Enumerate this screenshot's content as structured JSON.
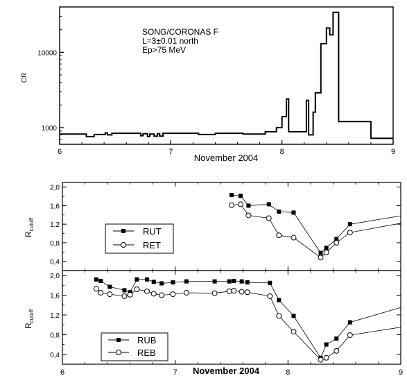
{
  "chart_data": [
    {
      "type": "line",
      "step": true,
      "scale_y": "log",
      "annotation": [
        "SONG/CORONAS F",
        "L=3±0.01 north",
        "Ep>75 MeV"
      ],
      "xlabel": "November 2004",
      "ylabel": "CR",
      "xlim": [
        6,
        9
      ],
      "ylim": [
        600,
        40000
      ],
      "x_ticks": [
        "6",
        "7",
        "8",
        "9"
      ],
      "y_ticks": [
        {
          "value": 1000,
          "label": "1000"
        },
        {
          "value": 10000,
          "label": "10000"
        }
      ],
      "series": [
        {
          "color": "#000000",
          "points": [
            [
              6.0,
              820
            ],
            [
              6.24,
              820
            ],
            [
              6.24,
              760
            ],
            [
              6.31,
              760
            ],
            [
              6.31,
              810
            ],
            [
              6.41,
              810
            ],
            [
              6.41,
              850
            ],
            [
              6.43,
              850
            ],
            [
              6.43,
              800
            ],
            [
              6.47,
              800
            ],
            [
              6.47,
              840
            ],
            [
              6.73,
              840
            ],
            [
              6.73,
              780
            ],
            [
              6.75,
              780
            ],
            [
              6.75,
              830
            ],
            [
              6.79,
              830
            ],
            [
              6.79,
              760
            ],
            [
              6.81,
              760
            ],
            [
              6.81,
              820
            ],
            [
              6.85,
              820
            ],
            [
              6.85,
              770
            ],
            [
              6.88,
              770
            ],
            [
              6.88,
              830
            ],
            [
              6.9,
              830
            ],
            [
              6.9,
              770
            ],
            [
              6.93,
              770
            ],
            [
              6.93,
              840
            ],
            [
              7.25,
              840
            ],
            [
              7.25,
              810
            ],
            [
              7.4,
              810
            ],
            [
              7.4,
              840
            ],
            [
              7.65,
              840
            ],
            [
              7.65,
              820
            ],
            [
              7.85,
              820
            ],
            [
              7.85,
              880
            ],
            [
              7.95,
              880
            ],
            [
              7.95,
              1000
            ],
            [
              8.0,
              1000
            ],
            [
              8.0,
              1400
            ],
            [
              8.04,
              1400
            ],
            [
              8.04,
              2400
            ],
            [
              8.06,
              2400
            ],
            [
              8.06,
              880
            ],
            [
              8.22,
              880
            ],
            [
              8.22,
              2300
            ],
            [
              8.24,
              2300
            ],
            [
              8.24,
              800
            ],
            [
              8.28,
              800
            ],
            [
              8.28,
              1600
            ],
            [
              8.3,
              1600
            ],
            [
              8.3,
              2900
            ],
            [
              8.35,
              2900
            ],
            [
              8.35,
              13000
            ],
            [
              8.4,
              13000
            ],
            [
              8.4,
              21000
            ],
            [
              8.43,
              21000
            ],
            [
              8.43,
              17000
            ],
            [
              8.46,
              17000
            ],
            [
              8.46,
              34000
            ],
            [
              8.51,
              34000
            ],
            [
              8.51,
              1200
            ],
            [
              8.8,
              1200
            ],
            [
              8.8,
              720
            ],
            [
              9.0,
              720
            ]
          ]
        }
      ]
    },
    {
      "type": "line",
      "xlim": [
        6,
        9
      ],
      "ylim": [
        0.2,
        2.1
      ],
      "ylabel": "R",
      "ylabel_sub": "cutoff",
      "x_ticks": [
        "6",
        "7",
        "8",
        "9"
      ],
      "y_ticks": [
        "0,4",
        "0,8",
        "1,2",
        "1,6",
        "2,0"
      ],
      "y_tick_values": [
        0.4,
        0.8,
        1.2,
        1.6,
        2.0
      ],
      "legend": "inside, center-left",
      "series": [
        {
          "name": "RUT",
          "marker": "filled-square",
          "x": [
            7.5,
            7.58,
            7.65,
            7.83,
            7.92,
            8.05,
            8.29,
            8.34,
            8.43,
            8.55,
            9.0
          ],
          "y": [
            1.83,
            1.81,
            1.6,
            1.63,
            1.47,
            1.45,
            0.58,
            0.69,
            0.88,
            1.2,
            1.38
          ]
        },
        {
          "name": "RET",
          "marker": "open-circle",
          "x": [
            7.5,
            7.58,
            7.65,
            7.83,
            7.92,
            8.05,
            8.29,
            8.34,
            8.43,
            8.55,
            9.0
          ],
          "y": [
            1.61,
            1.63,
            1.39,
            1.33,
            0.96,
            0.91,
            0.48,
            0.59,
            0.8,
            1.02,
            1.22
          ]
        }
      ]
    },
    {
      "type": "line",
      "xlabel": "November 2004",
      "xlim": [
        6,
        9
      ],
      "ylim": [
        0.2,
        2.1
      ],
      "ylabel": "R",
      "ylabel_sub": "cutoff",
      "x_ticks": [
        "6",
        "7",
        "8",
        "9"
      ],
      "y_ticks": [
        "0,4",
        "0,8",
        "1,2",
        "1,6",
        "2,0"
      ],
      "y_tick_values": [
        0.4,
        0.8,
        1.2,
        1.6,
        2.0
      ],
      "legend": "inside, bottom-left",
      "series": [
        {
          "name": "RUB",
          "marker": "filled-square",
          "x": [
            6.3,
            6.34,
            6.42,
            6.55,
            6.6,
            6.66,
            6.75,
            6.81,
            6.88,
            6.98,
            7.1,
            7.35,
            7.48,
            7.52,
            7.59,
            7.64,
            7.84,
            7.92,
            8.05,
            8.29,
            8.34,
            8.43,
            8.55,
            9.0
          ],
          "y": [
            1.92,
            1.89,
            1.77,
            1.7,
            1.66,
            1.92,
            1.92,
            1.87,
            1.84,
            1.86,
            1.88,
            1.88,
            1.88,
            1.89,
            1.88,
            1.86,
            1.85,
            1.5,
            1.18,
            0.33,
            0.6,
            0.72,
            1.05,
            1.35
          ]
        },
        {
          "name": "REB",
          "marker": "open-circle",
          "x": [
            6.3,
            6.34,
            6.42,
            6.55,
            6.6,
            6.66,
            6.75,
            6.81,
            6.88,
            6.98,
            7.1,
            7.35,
            7.48,
            7.52,
            7.59,
            7.64,
            7.84,
            7.92,
            8.05,
            8.29,
            8.34,
            8.43,
            8.55,
            9.0
          ],
          "y": [
            1.73,
            1.65,
            1.62,
            1.58,
            1.61,
            1.72,
            1.68,
            1.63,
            1.6,
            1.62,
            1.65,
            1.64,
            1.68,
            1.69,
            1.67,
            1.66,
            1.58,
            1.18,
            0.86,
            0.29,
            0.33,
            0.47,
            0.79,
            0.95
          ]
        }
      ]
    }
  ]
}
